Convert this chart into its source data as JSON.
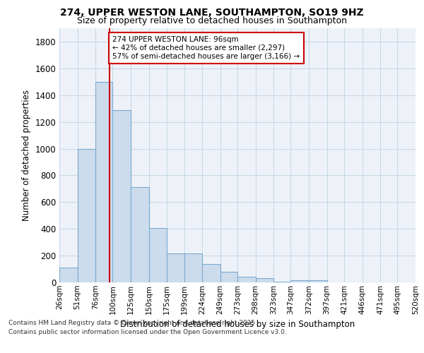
{
  "title1": "274, UPPER WESTON LANE, SOUTHAMPTON, SO19 9HZ",
  "title2": "Size of property relative to detached houses in Southampton",
  "xlabel": "Distribution of detached houses by size in Southampton",
  "ylabel": "Number of detached properties",
  "categories": [
    "26sqm",
    "51sqm",
    "76sqm",
    "100sqm",
    "125sqm",
    "150sqm",
    "175sqm",
    "199sqm",
    "224sqm",
    "249sqm",
    "273sqm",
    "298sqm",
    "323sqm",
    "347sqm",
    "372sqm",
    "397sqm",
    "421sqm",
    "446sqm",
    "471sqm",
    "495sqm",
    "520sqm"
  ],
  "bar_edges": [
    26,
    51,
    76,
    100,
    125,
    150,
    175,
    199,
    224,
    249,
    273,
    298,
    323,
    347,
    372,
    397,
    421,
    446,
    471,
    495,
    520
  ],
  "bar_heights": [
    110,
    1000,
    1500,
    1290,
    710,
    405,
    215,
    215,
    135,
    80,
    40,
    30,
    5,
    15,
    15,
    0,
    0,
    0,
    0,
    0
  ],
  "bar_color": "#ccdcec",
  "bar_edge_color": "#7aaad0",
  "red_line_x": 96,
  "ylim": [
    0,
    1900
  ],
  "yticks": [
    0,
    200,
    400,
    600,
    800,
    1000,
    1200,
    1400,
    1600,
    1800
  ],
  "annotation_title": "274 UPPER WESTON LANE: 96sqm",
  "annotation_line1": "← 42% of detached houses are smaller (2,297)",
  "annotation_line2": "57% of semi-detached houses are larger (3,166) →",
  "annotation_box_color": "#ffffff",
  "annotation_box_edge": "#cc0000",
  "grid_color": "#c8d8e8",
  "background_color": "#eef2f8",
  "footer1": "Contains HM Land Registry data © Crown copyright and database right 2025.",
  "footer2": "Contains public sector information licensed under the Open Government Licence v3.0."
}
